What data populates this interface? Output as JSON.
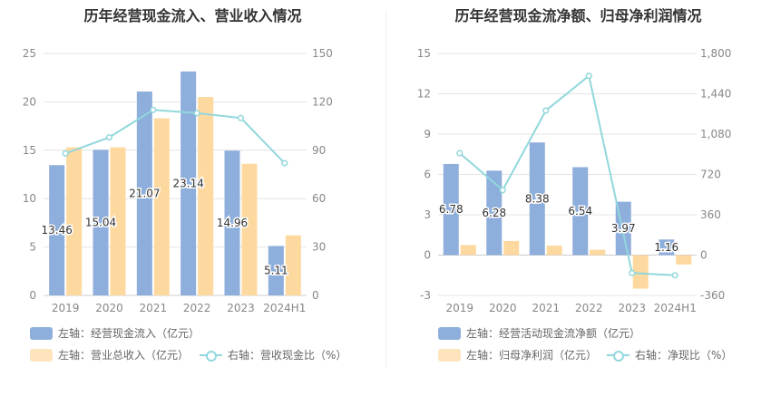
{
  "colors": {
    "bar1": "#8eaedc",
    "bar2": "#fdd9a0",
    "line": "#91d7dc",
    "grid": "#e4e4e4",
    "axis_text": "#888888"
  },
  "chart_data": [
    {
      "type": "bar",
      "title": "历年经营现金流入、营业收入情况",
      "categories": [
        "2019",
        "2020",
        "2021",
        "2022",
        "2023",
        "2024H1"
      ],
      "y_left_ticks": [
        "0",
        "5",
        "10",
        "15",
        "20",
        "25"
      ],
      "y_right_ticks": [
        "0",
        "30",
        "60",
        "90",
        "120",
        "150"
      ],
      "ylim_left": [
        0,
        25
      ],
      "ylim_right": [
        0,
        150
      ],
      "series": [
        {
          "name": "左轴：经营现金流入（亿元）",
          "axis": "left",
          "kind": "bar",
          "values": [
            13.46,
            15.04,
            21.07,
            23.14,
            14.96,
            5.11
          ],
          "labels": [
            "13.46",
            "15.04",
            "21.07",
            "23.14",
            "14.96",
            "5.11"
          ]
        },
        {
          "name": "左轴：营业总收入（亿元）",
          "axis": "left",
          "kind": "bar",
          "values": [
            15.3,
            15.3,
            18.3,
            20.5,
            13.6,
            6.2
          ]
        },
        {
          "name": "右轴：营收现金比（%）",
          "axis": "right",
          "kind": "line",
          "values": [
            88,
            98,
            115,
            113,
            110,
            82
          ]
        }
      ],
      "legend": [
        "左轴：经营现金流入（亿元）",
        "左轴：营业总收入（亿元）",
        "右轴：营收现金比（%）"
      ],
      "legend_placement": "bottom",
      "grid": true
    },
    {
      "type": "bar",
      "title": "历年经营现金流净额、归母净利润情况",
      "categories": [
        "2019",
        "2020",
        "2021",
        "2022",
        "2023",
        "2024H1"
      ],
      "y_left_ticks": [
        "-3",
        "0",
        "3",
        "6",
        "9",
        "12",
        "15"
      ],
      "y_right_ticks": [
        "-360",
        "0",
        "360",
        "720",
        "1,080",
        "1,440",
        "1,800"
      ],
      "ylim_left": [
        -3,
        15
      ],
      "ylim_right": [
        -360,
        1800
      ],
      "series": [
        {
          "name": "左轴：经营活动现金流净额（亿元）",
          "axis": "left",
          "kind": "bar",
          "values": [
            6.78,
            6.28,
            8.38,
            6.54,
            3.97,
            1.16
          ],
          "labels": [
            "6.78",
            "6.28",
            "8.38",
            "6.54",
            "3.97",
            "1.16"
          ]
        },
        {
          "name": "左轴：归母净利润（亿元）",
          "axis": "left",
          "kind": "bar",
          "values": [
            0.75,
            1.05,
            0.7,
            0.4,
            -2.5,
            -0.7
          ]
        },
        {
          "name": "右轴：净现比（%）",
          "axis": "right",
          "kind": "line",
          "values": [
            910,
            580,
            1290,
            1600,
            -160,
            -180
          ]
        }
      ],
      "legend": [
        "左轴：经营活动现金流净额（亿元）",
        "左轴：归母净利润（亿元）",
        "右轴：净现比（%）"
      ],
      "legend_placement": "bottom",
      "grid": true
    }
  ]
}
